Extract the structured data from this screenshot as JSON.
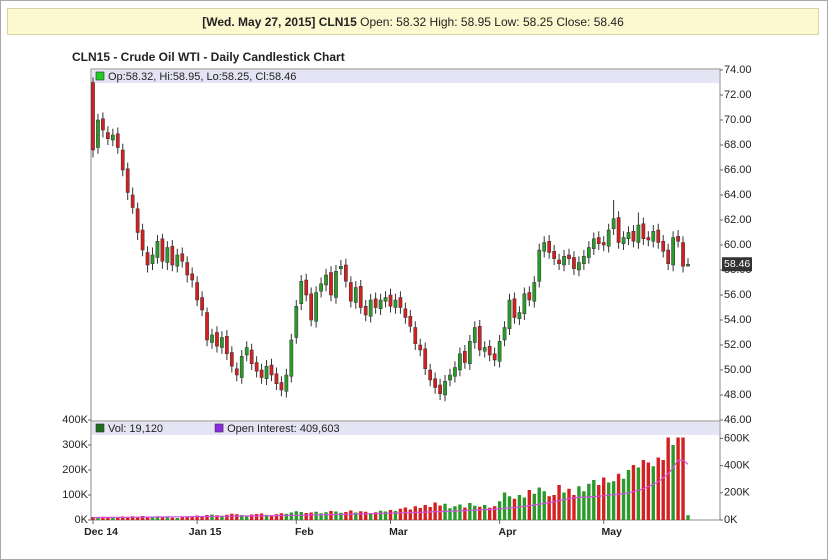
{
  "header": {
    "date": "[Wed. May 27, 2015]",
    "symbol": "CLN15",
    "fields": [
      {
        "label": "Open:",
        "value": 58.32
      },
      {
        "label": "High:",
        "value": 58.95
      },
      {
        "label": "Low:",
        "value": 58.25
      },
      {
        "label": "Close:",
        "value": 58.46
      }
    ]
  },
  "chart_data": [
    {
      "type": "candlestick",
      "title": "CLN15 - Crude Oil WTI - Daily Candlestick Chart",
      "series_name": "Op:58.32, Hi:58.95, Lo:58.25, Cl:58.46",
      "up_color": "#2a9a2a",
      "down_color": "#d42020",
      "open": [
        73.0,
        67.8,
        70.1,
        69.0,
        68.4,
        68.9,
        67.6,
        66.1,
        64.0,
        62.9,
        61.2,
        59.4,
        58.5,
        59.0,
        60.5,
        58.6,
        59.9,
        58.3,
        59.3,
        58.6,
        57.7,
        57.0,
        55.8,
        54.6,
        52.2,
        53.0,
        51.8,
        52.7,
        51.4,
        50.1,
        49.4,
        51.2,
        51.6,
        50.6,
        50.0,
        49.3,
        50.4,
        49.7,
        49.0,
        48.3,
        49.5,
        52.6,
        55.3,
        57.2,
        56.1,
        53.9,
        56.3,
        56.8,
        57.8,
        55.8,
        58.1,
        58.4,
        57.0,
        55.4,
        56.7,
        55.1,
        54.3,
        55.7,
        54.9,
        55.5,
        56.0,
        55.0,
        55.8,
        54.9,
        54.3,
        53.4,
        52.0,
        51.7,
        50.0,
        49.3,
        48.8,
        48.0,
        49.2,
        49.5,
        50.0,
        51.5,
        50.5,
        52.2,
        53.5,
        51.5,
        51.9,
        51.3,
        50.7,
        52.4,
        53.3,
        55.7,
        54.1,
        54.5,
        56.2,
        55.5,
        57.1,
        59.5,
        60.3,
        59.5,
        58.8,
        58.4,
        59.2,
        59.0,
        58.0,
        58.5,
        59.0,
        59.7,
        60.6,
        60.2,
        59.9,
        61.3,
        62.2,
        60.1,
        60.5,
        61.1,
        60.2,
        61.7,
        60.6,
        60.3,
        61.2,
        60.3,
        59.6,
        58.4,
        60.7,
        60.2,
        58.32
      ],
      "high": [
        73.4,
        70.5,
        70.6,
        69.5,
        69.3,
        69.4,
        68.1,
        66.6,
        64.6,
        63.4,
        61.7,
        59.9,
        59.8,
        60.8,
        60.9,
        60.3,
        60.4,
        59.7,
        59.8,
        59.1,
        58.2,
        57.5,
        56.3,
        55.0,
        53.3,
        53.5,
        53.1,
        53.2,
        51.9,
        50.6,
        51.6,
        52.3,
        52.1,
        51.1,
        50.5,
        50.8,
        50.9,
        50.2,
        49.5,
        50.1,
        52.9,
        55.6,
        57.6,
        57.7,
        56.6,
        56.7,
        57.4,
        58.1,
        58.3,
        58.4,
        58.8,
        58.9,
        57.5,
        57.1,
        57.2,
        55.6,
        56.1,
        56.2,
        56.1,
        56.3,
        56.5,
        56.1,
        56.3,
        55.4,
        54.8,
        53.9,
        52.5,
        52.2,
        50.5,
        49.8,
        49.3,
        49.6,
        50.1,
        50.7,
        51.8,
        52.0,
        52.8,
        53.9,
        54.0,
        52.3,
        52.4,
        51.8,
        52.8,
        53.9,
        56.1,
        56.2,
        55.1,
        56.6,
        56.7,
        57.5,
        60.1,
        60.7,
        60.8,
        60.0,
        59.3,
        59.6,
        59.7,
        59.5,
        59.1,
        59.6,
        60.3,
        61.0,
        61.1,
        60.7,
        61.7,
        63.6,
        62.7,
        61.1,
        61.5,
        61.6,
        62.6,
        62.2,
        61.1,
        61.6,
        61.7,
        60.8,
        60.1,
        61.1,
        61.2,
        60.7,
        58.95
      ],
      "low": [
        67.0,
        67.3,
        68.6,
        68.0,
        67.9,
        67.3,
        65.5,
        63.6,
        62.5,
        60.4,
        59.1,
        57.8,
        58.0,
        58.5,
        58.1,
        58.0,
        57.9,
        57.8,
        58.2,
        57.0,
        56.6,
        55.1,
        54.3,
        51.9,
        51.7,
        51.4,
        51.3,
        50.8,
        49.8,
        49.1,
        48.9,
        50.7,
        50.0,
        49.4,
        48.9,
        48.8,
        49.1,
        48.4,
        47.9,
        47.8,
        49.0,
        52.1,
        54.8,
        55.5,
        53.5,
        53.4,
        55.8,
        56.3,
        55.5,
        55.3,
        57.6,
        56.6,
        55.0,
        54.9,
        54.5,
        53.9,
        53.8,
        54.5,
        54.4,
        55.0,
        54.6,
        54.5,
        54.5,
        53.7,
        53.0,
        51.6,
        51.1,
        49.6,
        48.7,
        48.1,
        47.6,
        47.5,
        48.7,
        49.0,
        49.5,
        50.1,
        50.0,
        51.7,
        51.1,
        51.0,
        50.7,
        50.3,
        50.2,
        51.9,
        52.8,
        53.7,
        53.6,
        54.0,
        55.1,
        55.0,
        56.6,
        59.0,
        58.9,
        58.4,
        58.0,
        57.9,
        58.4,
        57.6,
        57.5,
        58.0,
        58.5,
        59.2,
        59.6,
        59.5,
        59.4,
        60.8,
        59.7,
        59.6,
        60.0,
        59.8,
        59.7,
        60.0,
        59.9,
        59.8,
        59.7,
        59.0,
        58.0,
        57.9,
        59.8,
        57.8,
        58.25
      ],
      "close": [
        67.6,
        70,
        69.2,
        68.5,
        68.8,
        67.8,
        66.0,
        64.2,
        63.0,
        61.0,
        59.6,
        58.4,
        59.2,
        60.3,
        58.7,
        59.8,
        58.4,
        59.2,
        58.7,
        57.6,
        57.2,
        55.6,
        54.8,
        52.4,
        52.8,
        51.9,
        52.6,
        51.3,
        50.3,
        49.6,
        51.1,
        51.8,
        50.5,
        49.9,
        49.4,
        50.3,
        49.6,
        48.9,
        48.4,
        49.6,
        52.4,
        55.1,
        57.1,
        56.0,
        54.0,
        56.2,
        56.9,
        57.6,
        56.0,
        57.9,
        58.3,
        57.1,
        55.5,
        56.6,
        55.0,
        54.4,
        55.6,
        55.0,
        55.6,
        55.8,
        55.1,
        55.6,
        55.0,
        54.2,
        53.5,
        52.1,
        51.6,
        50.1,
        49.2,
        48.6,
        48.1,
        49.1,
        49.6,
        50.2,
        51.3,
        50.6,
        52.3,
        53.4,
        51.6,
        51.8,
        51.2,
        50.8,
        52.3,
        53.4,
        55.6,
        54.2,
        54.6,
        56.1,
        55.6,
        57.0,
        59.6,
        60.2,
        59.4,
        58.9,
        58.5,
        59.1,
        58.9,
        58.1,
        58.6,
        59.1,
        59.8,
        60.5,
        60.1,
        60.0,
        61.2,
        62.1,
        60.2,
        60.6,
        61.0,
        60.3,
        61.6,
        60.5,
        60.4,
        61.1,
        60.2,
        59.5,
        58.5,
        60.6,
        60.3,
        58.3,
        58.46
      ],
      "ylim": [
        46,
        74
      ],
      "yticks": [
        {
          "value": 46,
          "label": "46.00"
        },
        {
          "value": 48,
          "label": "48.00"
        },
        {
          "value": 50,
          "label": "50.00"
        },
        {
          "value": 52,
          "label": "52.00"
        },
        {
          "value": 54,
          "label": "54.00"
        },
        {
          "value": 56,
          "label": "56.00"
        },
        {
          "value": 58,
          "label": "58.00"
        },
        {
          "value": 60,
          "label": "60.00"
        },
        {
          "value": 62,
          "label": "62.00"
        },
        {
          "value": 64,
          "label": "64.00"
        },
        {
          "value": 66,
          "label": "66.00"
        },
        {
          "value": 68,
          "label": "68.00"
        },
        {
          "value": 70,
          "label": "70.00"
        },
        {
          "value": 72,
          "label": "72.00"
        },
        {
          "value": 74,
          "label": "74.00"
        }
      ]
    },
    {
      "type": "bar",
      "categories": [
        "Dec 14",
        null,
        null,
        null,
        null,
        null,
        null,
        null,
        null,
        null,
        null,
        null,
        null,
        null,
        null,
        null,
        null,
        null,
        null,
        null,
        null,
        "Jan 15",
        null,
        null,
        null,
        null,
        null,
        null,
        null,
        null,
        null,
        null,
        null,
        null,
        null,
        null,
        null,
        null,
        null,
        null,
        null,
        "Feb",
        null,
        null,
        null,
        null,
        null,
        null,
        null,
        null,
        null,
        null,
        null,
        null,
        null,
        null,
        null,
        null,
        null,
        null,
        "Mar",
        null,
        null,
        null,
        null,
        null,
        null,
        null,
        null,
        null,
        null,
        null,
        null,
        null,
        null,
        null,
        null,
        null,
        null,
        null,
        null,
        null,
        "Apr",
        null,
        null,
        null,
        null,
        null,
        null,
        null,
        null,
        null,
        null,
        null,
        null,
        null,
        null,
        null,
        null,
        null,
        null,
        null,
        null,
        "May",
        null,
        null,
        null,
        null,
        null,
        null,
        null,
        null,
        null,
        null,
        null,
        null,
        null,
        null,
        null,
        null,
        null
      ],
      "series": [
        {
          "name": "Vol: 19,120",
          "color": "#1e6e1e",
          "values": [
            12000,
            11000,
            13000,
            10000,
            9000,
            12000,
            14000,
            11000,
            15000,
            13000,
            16000,
            14000,
            12000,
            15000,
            11000,
            10000,
            9000,
            8000,
            13000,
            12000,
            15000,
            18000,
            16000,
            20000,
            22000,
            19000,
            17000,
            21000,
            25000,
            23000,
            20000,
            18000,
            22000,
            24000,
            26000,
            21000,
            19000,
            23000,
            27000,
            25000,
            30000,
            35000,
            32000,
            28000,
            30000,
            33000,
            27000,
            31000,
            36000,
            34000,
            29000,
            32000,
            38000,
            30000,
            35000,
            33000,
            28000,
            31000,
            37000,
            34000,
            40000,
            36000,
            45000,
            50000,
            42000,
            55000,
            48000,
            60000,
            52000,
            70000,
            58000,
            65000,
            47000,
            55000,
            62000,
            50000,
            68000,
            57000,
            53000,
            60000,
            49000,
            55000,
            75000,
            110000,
            95000,
            85000,
            100000,
            90000,
            120000,
            105000,
            130000,
            115000,
            95000,
            100000,
            140000,
            110000,
            125000,
            100000,
            135000,
            115000,
            145000,
            160000,
            140000,
            170000,
            150000,
            155000,
            185000,
            165000,
            200000,
            220000,
            210000,
            240000,
            230000,
            215000,
            250000,
            240000,
            330000,
            300000,
            330000,
            330000,
            19120
          ]
        },
        {
          "name": "Open Interest: 409,603",
          "color": "#8a2be2",
          "line_color": "#d050e0",
          "axis": "y2",
          "values": [
            18000,
            18200,
            18500,
            18800,
            19000,
            19300,
            19600,
            20000,
            20300,
            20600,
            21000,
            21300,
            21600,
            22000,
            22300,
            22600,
            23000,
            23300,
            23600,
            24000,
            24300,
            24700,
            25100,
            25500,
            26000,
            26400,
            26900,
            27300,
            27800,
            28300,
            28800,
            29300,
            29800,
            30300,
            30800,
            31400,
            31900,
            32500,
            33000,
            33600,
            34200,
            34800,
            35500,
            36200,
            36900,
            37600,
            38300,
            39000,
            39800,
            40600,
            41400,
            42200,
            43000,
            43800,
            44700,
            45600,
            46500,
            47400,
            48300,
            49200,
            50200,
            51200,
            52300,
            53400,
            54500,
            55700,
            56900,
            58100,
            59400,
            60700,
            62000,
            63400,
            64800,
            66300,
            67800,
            69400,
            71000,
            72600,
            74300,
            76000,
            77800,
            79600,
            82000,
            85000,
            88000,
            92000,
            96000,
            100000,
            105000,
            110000,
            116000,
            122000,
            128000,
            135000,
            142000,
            150000,
            158000,
            163000,
            166000,
            168000,
            170000,
            172000,
            175000,
            178000,
            182000,
            186000,
            190000,
            195000,
            200000,
            208000,
            218000,
            230000,
            245000,
            262000,
            280000,
            310000,
            340000,
            385000,
            440000,
            440000,
            409603
          ]
        }
      ],
      "ylim": [
        0,
        400000
      ],
      "yticks": [
        {
          "value": 0,
          "label": "0K"
        },
        {
          "value": 100000,
          "label": "100K"
        },
        {
          "value": 200000,
          "label": "200K"
        },
        {
          "value": 300000,
          "label": "300K"
        },
        {
          "value": 400000,
          "label": "400K"
        }
      ],
      "y2lim": [
        0,
        735000
      ],
      "y2ticks": [
        {
          "value": 0,
          "label": "0K"
        },
        {
          "value": 200000,
          "label": "200K"
        },
        {
          "value": 400000,
          "label": "400K"
        },
        {
          "value": 600000,
          "label": "600K"
        }
      ]
    }
  ]
}
